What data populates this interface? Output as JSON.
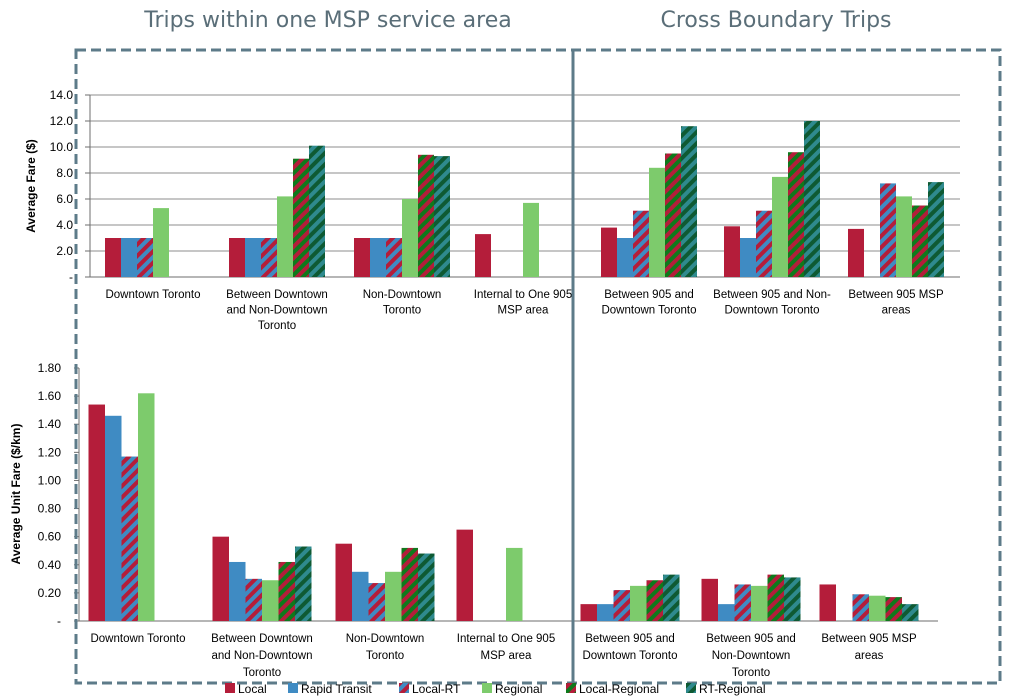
{
  "headers": {
    "left": "Trips within one MSP service area",
    "right": "Cross Boundary Trips"
  },
  "colors": {
    "frame": "#5d7b89",
    "grid": "#8c8c8c",
    "local": "#b41d3a",
    "rapid_transit": "#3f8bc3",
    "local_rt_a": "#b41d3a",
    "local_rt_b": "#3f8bc3",
    "regional": "#7dcb6c",
    "local_regional_a": "#b41d3a",
    "local_regional_b": "#0e7a1c",
    "rt_regional_a": "#2f8a8e",
    "rt_regional_b": "#0e5a33"
  },
  "legend": [
    {
      "key": "local",
      "label": "Local"
    },
    {
      "key": "rapid_transit",
      "label": "Rapid Transit"
    },
    {
      "key": "local_rt",
      "label": "Local-RT"
    },
    {
      "key": "regional",
      "label": "Regional"
    },
    {
      "key": "local_regional",
      "label": "Local-Regional"
    },
    {
      "key": "rt_regional",
      "label": "RT-Regional"
    }
  ],
  "chart_data": [
    {
      "id": "avg-fare",
      "type": "bar",
      "ylabel": "Average Fare ($)",
      "ylim": [
        0,
        14
      ],
      "yticks": [
        "-",
        "2.0",
        "4.0",
        "6.0",
        "8.0",
        "10.0",
        "12.0",
        "14.0"
      ],
      "grid": true,
      "categories": [
        [
          "Downtown Toronto"
        ],
        [
          "Between Downtown",
          "and Non-Downtown",
          "Toronto"
        ],
        [
          "Non-Downtown",
          "Toronto"
        ],
        [
          "Internal to One 905",
          "MSP area"
        ],
        [
          "Between 905 and",
          "Downtown Toronto"
        ],
        [
          "Between 905 and Non-",
          "Downtown Toronto"
        ],
        [
          "Between 905 MSP",
          "areas"
        ]
      ],
      "series": [
        {
          "key": "local",
          "name": "Local",
          "values": [
            3.0,
            3.0,
            3.0,
            3.3,
            3.8,
            3.9,
            3.7
          ]
        },
        {
          "key": "rapid_transit",
          "name": "Rapid Transit",
          "values": [
            3.0,
            3.0,
            3.0,
            null,
            3.0,
            3.0,
            null
          ]
        },
        {
          "key": "local_rt",
          "name": "Local-RT",
          "values": [
            3.0,
            3.0,
            3.0,
            null,
            5.1,
            5.1,
            7.2
          ]
        },
        {
          "key": "regional",
          "name": "Regional",
          "values": [
            5.3,
            6.2,
            6.0,
            5.7,
            8.4,
            7.7,
            6.2
          ]
        },
        {
          "key": "local_regional",
          "name": "Local-Regional",
          "values": [
            null,
            9.1,
            9.4,
            null,
            9.5,
            9.6,
            5.5
          ]
        },
        {
          "key": "rt_regional",
          "name": "RT-Regional",
          "values": [
            null,
            10.1,
            9.3,
            null,
            11.6,
            12.0,
            7.3
          ]
        }
      ]
    },
    {
      "id": "avg-unit-fare",
      "type": "bar",
      "ylabel": "Average Unit Fare ($/km)",
      "ylim": [
        0,
        1.8
      ],
      "yticks": [
        "-",
        "0.20",
        "0.40",
        "0.60",
        "0.80",
        "1.00",
        "1.20",
        "1.40",
        "1.60",
        "1.80"
      ],
      "grid": false,
      "categories": [
        [
          "Downtown Toronto"
        ],
        [
          "Between Downtown",
          "and Non-Downtown",
          "Toronto"
        ],
        [
          "Non-Downtown",
          "Toronto"
        ],
        [
          "Internal to One 905",
          "MSP area"
        ],
        [
          "Between 905 and",
          "Downtown Toronto"
        ],
        [
          "Between 905 and",
          "Non-Downtown",
          "Toronto"
        ],
        [
          "Between 905 MSP",
          "areas"
        ]
      ],
      "series": [
        {
          "key": "local",
          "name": "Local",
          "values": [
            1.54,
            0.6,
            0.55,
            0.65,
            0.12,
            0.3,
            0.26
          ]
        },
        {
          "key": "rapid_transit",
          "name": "Rapid Transit",
          "values": [
            1.46,
            0.42,
            0.35,
            null,
            0.12,
            0.12,
            null
          ]
        },
        {
          "key": "local_rt",
          "name": "Local-RT",
          "values": [
            1.17,
            0.3,
            0.27,
            null,
            0.22,
            0.26,
            0.19
          ]
        },
        {
          "key": "regional",
          "name": "Regional",
          "values": [
            1.62,
            0.29,
            0.35,
            0.52,
            0.25,
            0.25,
            0.18
          ]
        },
        {
          "key": "local_regional",
          "name": "Local-Regional",
          "values": [
            null,
            0.42,
            0.52,
            null,
            0.29,
            0.33,
            0.17
          ]
        },
        {
          "key": "rt_regional",
          "name": "RT-Regional",
          "values": [
            null,
            0.53,
            0.48,
            null,
            0.33,
            0.31,
            0.12
          ]
        }
      ]
    }
  ]
}
